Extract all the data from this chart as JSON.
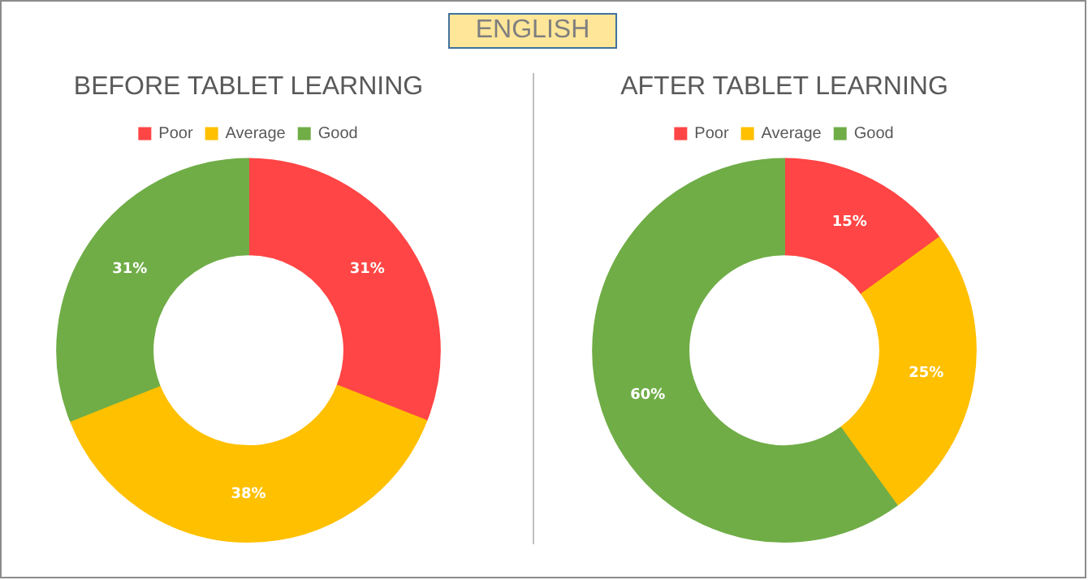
{
  "chart_data": [
    {
      "type": "other",
      "title": "ENGLISH"
    },
    {
      "type": "donut",
      "title": "BEFORE TABLET LEARNING",
      "categories": [
        "Poor",
        "Average",
        "Good"
      ],
      "values": [
        31,
        38,
        31
      ],
      "colors": [
        "#ff4545",
        "#ffc000",
        "#70ad47"
      ],
      "value_labels": [
        "31%",
        "38%",
        "31%"
      ],
      "legend": "top"
    },
    {
      "type": "donut",
      "title": "AFTER TABLET LEARNING",
      "categories": [
        "Poor",
        "Average",
        "Good"
      ],
      "values": [
        15,
        25,
        60
      ],
      "colors": [
        "#ff4545",
        "#ffc000",
        "#70ad47"
      ],
      "value_labels": [
        "15%",
        "25%",
        "60%"
      ],
      "legend": "top"
    }
  ]
}
